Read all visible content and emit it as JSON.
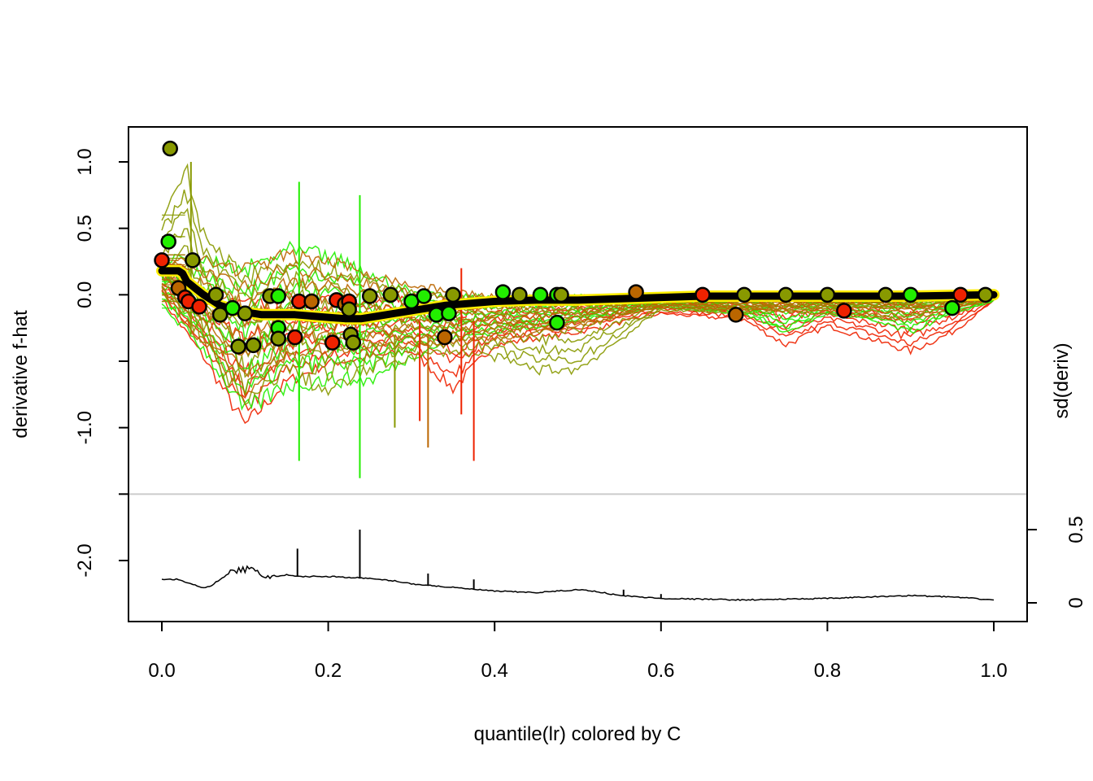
{
  "chart_data": {
    "type": "line",
    "xlabel": "quantile(lr) colored by C",
    "ylabel": "derivative f-hat",
    "right_label": "sd(deriv)",
    "x_ticks": [
      "0.0",
      "0.2",
      "0.4",
      "0.6",
      "0.8",
      "1.0"
    ],
    "x_tick_values": [
      0,
      0.2,
      0.4,
      0.6,
      0.8,
      1.0
    ],
    "y_ticks": [
      "1.0",
      "0.5",
      "0.0",
      "-1.0",
      "-2.0"
    ],
    "y_tick_values": [
      1.0,
      0.5,
      0.0,
      -1.0,
      -2.0
    ],
    "y_minor_ticks": [
      -0.5,
      -1.5
    ],
    "right_ticks": [
      "0.5",
      "0"
    ],
    "right_tick_values": [
      0.5,
      0.0
    ],
    "xlim": [
      -0.04,
      1.04
    ],
    "ylim": [
      -2.45,
      1.25
    ],
    "sd_panel_ylim": [
      -0.12,
      0.78
    ],
    "separator_y": -1.5,
    "colors": {
      "red": "#ee2200",
      "green": "#22ee00",
      "olive": "#889900",
      "brown": "#bb6600",
      "mean": "#000000",
      "mean_outline": "#ffee00",
      "separator": "#cccccc"
    },
    "mean_curve": {
      "x": [
        0,
        0.02,
        0.025,
        0.03,
        0.04,
        0.05,
        0.06,
        0.07,
        0.08,
        0.09,
        0.1,
        0.12,
        0.14,
        0.16,
        0.18,
        0.2,
        0.22,
        0.24,
        0.26,
        0.28,
        0.3,
        0.32,
        0.34,
        0.36,
        0.38,
        0.4,
        0.45,
        0.5,
        0.55,
        0.6,
        0.65,
        0.7,
        0.8,
        0.9,
        1.0
      ],
      "y": [
        0.18,
        0.18,
        0.16,
        0.1,
        0.05,
        0.0,
        -0.04,
        -0.08,
        -0.1,
        -0.12,
        -0.13,
        -0.15,
        -0.15,
        -0.15,
        -0.16,
        -0.17,
        -0.18,
        -0.18,
        -0.16,
        -0.14,
        -0.12,
        -0.1,
        -0.08,
        -0.07,
        -0.06,
        -0.05,
        -0.04,
        -0.04,
        -0.03,
        -0.02,
        -0.01,
        -0.01,
        -0.01,
        -0.01,
        0.0
      ]
    },
    "curve_bands": [
      {
        "color": "red",
        "x": [
          0,
          0.05,
          0.1,
          0.15,
          0.2,
          0.25,
          0.3,
          0.35,
          0.4,
          0.5,
          0.6,
          0.7,
          0.75,
          0.8,
          0.85,
          0.9,
          0.95,
          1.0
        ],
        "upper": [
          0.3,
          0.05,
          0.0,
          0.02,
          0.0,
          -0.02,
          0.0,
          -0.02,
          -0.01,
          0.0,
          0.0,
          0.0,
          -0.01,
          -0.02,
          -0.03,
          -0.02,
          -0.01,
          0.0
        ],
        "lower": [
          -0.05,
          -0.5,
          -1.05,
          -0.7,
          -0.55,
          -0.5,
          -0.45,
          -0.75,
          -0.4,
          -0.3,
          -0.15,
          -0.2,
          -0.4,
          -0.25,
          -0.35,
          -0.45,
          -0.3,
          -0.05
        ]
      },
      {
        "color": "green",
        "x": [
          0,
          0.05,
          0.1,
          0.15,
          0.2,
          0.25,
          0.3,
          0.35,
          0.4,
          0.5,
          0.6,
          0.7,
          0.75,
          0.8,
          0.85,
          0.9,
          0.95,
          1.0
        ],
        "upper": [
          0.3,
          0.3,
          0.25,
          0.4,
          0.35,
          0.2,
          0.05,
          0.02,
          0.0,
          0.0,
          0.0,
          0.0,
          0.0,
          0.0,
          0.0,
          0.0,
          0.0,
          0.0
        ],
        "lower": [
          -0.1,
          -0.45,
          -0.95,
          -0.75,
          -0.7,
          -0.7,
          -0.5,
          -0.35,
          -0.3,
          -0.2,
          -0.1,
          -0.15,
          -0.3,
          -0.15,
          -0.2,
          -0.3,
          -0.15,
          -0.05
        ]
      },
      {
        "color": "olive",
        "x": [
          0,
          0.03,
          0.05,
          0.1,
          0.15,
          0.2,
          0.25,
          0.3,
          0.35,
          0.4,
          0.45,
          0.5,
          0.6,
          0.7,
          0.8,
          0.9,
          1.0
        ],
        "upper": [
          0.6,
          1.0,
          0.5,
          0.2,
          0.3,
          0.25,
          0.15,
          0.05,
          0.02,
          0.0,
          0.0,
          0.0,
          0.0,
          0.0,
          0.0,
          0.0,
          0.0
        ],
        "lower": [
          -0.05,
          -0.2,
          -0.4,
          -0.9,
          -0.6,
          -0.8,
          -0.6,
          -0.5,
          -0.45,
          -0.5,
          -0.6,
          -0.6,
          -0.12,
          -0.15,
          -0.1,
          -0.1,
          -0.03
        ]
      },
      {
        "color": "brown",
        "x": [
          0,
          0.05,
          0.1,
          0.15,
          0.2,
          0.3,
          0.4,
          0.5,
          0.6,
          0.7,
          0.8,
          0.9,
          1.0
        ],
        "upper": [
          0.3,
          0.3,
          0.25,
          0.35,
          0.3,
          0.1,
          0.0,
          0.0,
          0.0,
          0.0,
          0.0,
          0.0,
          0.0
        ],
        "lower": [
          0.0,
          -0.4,
          -0.8,
          -0.5,
          -0.45,
          -0.4,
          -0.35,
          -0.25,
          -0.1,
          -0.12,
          -0.15,
          -0.2,
          -0.03
        ]
      }
    ],
    "spikes": [
      {
        "x": 0.165,
        "y1": -0.8,
        "y2": 0.85,
        "color": "green"
      },
      {
        "x": 0.165,
        "y1": -1.25,
        "y2": -0.4,
        "color": "green"
      },
      {
        "x": 0.238,
        "y1": -1.38,
        "y2": 0.75,
        "color": "green"
      },
      {
        "x": 0.32,
        "y1": -1.15,
        "y2": -0.3,
        "color": "brown"
      },
      {
        "x": 0.375,
        "y1": -1.25,
        "y2": -0.2,
        "color": "red"
      },
      {
        "x": 0.36,
        "y1": -0.9,
        "y2": 0.2,
        "color": "red"
      },
      {
        "x": 0.31,
        "y1": -0.95,
        "y2": -0.2,
        "color": "red"
      },
      {
        "x": 0.035,
        "y1": -0.3,
        "y2": 1.0,
        "color": "olive"
      },
      {
        "x": 0.28,
        "y1": -1.0,
        "y2": -0.3,
        "color": "olive"
      }
    ],
    "points": [
      {
        "x": 0.01,
        "y": 1.1,
        "color": "olive"
      },
      {
        "x": 0.008,
        "y": 0.4,
        "color": "green"
      },
      {
        "x": 0.0,
        "y": 0.26,
        "color": "red"
      },
      {
        "x": 0.037,
        "y": 0.26,
        "color": "olive"
      },
      {
        "x": 0.02,
        "y": 0.05,
        "color": "brown"
      },
      {
        "x": 0.028,
        "y": -0.02,
        "color": "red"
      },
      {
        "x": 0.032,
        "y": -0.05,
        "color": "red"
      },
      {
        "x": 0.045,
        "y": -0.09,
        "color": "red"
      },
      {
        "x": 0.065,
        "y": 0.0,
        "color": "olive"
      },
      {
        "x": 0.07,
        "y": -0.15,
        "color": "olive"
      },
      {
        "x": 0.085,
        "y": -0.1,
        "color": "green"
      },
      {
        "x": 0.092,
        "y": -0.39,
        "color": "olive"
      },
      {
        "x": 0.11,
        "y": -0.38,
        "color": "olive"
      },
      {
        "x": 0.1,
        "y": -0.14,
        "color": "olive"
      },
      {
        "x": 0.13,
        "y": -0.01,
        "color": "olive"
      },
      {
        "x": 0.14,
        "y": -0.01,
        "color": "green"
      },
      {
        "x": 0.14,
        "y": -0.25,
        "color": "green"
      },
      {
        "x": 0.14,
        "y": -0.33,
        "color": "olive"
      },
      {
        "x": 0.16,
        "y": -0.32,
        "color": "red"
      },
      {
        "x": 0.165,
        "y": -0.05,
        "color": "red"
      },
      {
        "x": 0.18,
        "y": -0.05,
        "color": "brown"
      },
      {
        "x": 0.205,
        "y": -0.36,
        "color": "red"
      },
      {
        "x": 0.21,
        "y": -0.04,
        "color": "red"
      },
      {
        "x": 0.22,
        "y": -0.07,
        "color": "brown"
      },
      {
        "x": 0.225,
        "y": -0.05,
        "color": "red"
      },
      {
        "x": 0.225,
        "y": -0.11,
        "color": "olive"
      },
      {
        "x": 0.227,
        "y": -0.3,
        "color": "olive"
      },
      {
        "x": 0.23,
        "y": -0.36,
        "color": "olive"
      },
      {
        "x": 0.25,
        "y": -0.01,
        "color": "olive"
      },
      {
        "x": 0.275,
        "y": 0.0,
        "color": "olive"
      },
      {
        "x": 0.3,
        "y": -0.05,
        "color": "green"
      },
      {
        "x": 0.315,
        "y": -0.01,
        "color": "green"
      },
      {
        "x": 0.33,
        "y": -0.15,
        "color": "green"
      },
      {
        "x": 0.34,
        "y": -0.32,
        "color": "brown"
      },
      {
        "x": 0.345,
        "y": -0.14,
        "color": "green"
      },
      {
        "x": 0.35,
        "y": 0.0,
        "color": "olive"
      },
      {
        "x": 0.41,
        "y": 0.02,
        "color": "green"
      },
      {
        "x": 0.43,
        "y": 0.0,
        "color": "olive"
      },
      {
        "x": 0.455,
        "y": 0.0,
        "color": "green"
      },
      {
        "x": 0.475,
        "y": 0.0,
        "color": "green"
      },
      {
        "x": 0.475,
        "y": -0.21,
        "color": "green"
      },
      {
        "x": 0.48,
        "y": 0.0,
        "color": "olive"
      },
      {
        "x": 0.57,
        "y": 0.02,
        "color": "brown"
      },
      {
        "x": 0.65,
        "y": 0.0,
        "color": "red"
      },
      {
        "x": 0.69,
        "y": -0.15,
        "color": "brown"
      },
      {
        "x": 0.7,
        "y": 0.0,
        "color": "olive"
      },
      {
        "x": 0.75,
        "y": 0.0,
        "color": "olive"
      },
      {
        "x": 0.8,
        "y": 0.0,
        "color": "olive"
      },
      {
        "x": 0.82,
        "y": -0.12,
        "color": "red"
      },
      {
        "x": 0.87,
        "y": 0.0,
        "color": "olive"
      },
      {
        "x": 0.9,
        "y": 0.0,
        "color": "green"
      },
      {
        "x": 0.95,
        "y": -0.1,
        "color": "green"
      },
      {
        "x": 0.96,
        "y": 0.0,
        "color": "red"
      },
      {
        "x": 0.99,
        "y": 0.0,
        "color": "olive"
      }
    ],
    "sd_curve": {
      "x": [
        0,
        0.02,
        0.03,
        0.04,
        0.05,
        0.06,
        0.07,
        0.08,
        0.09,
        0.1,
        0.11,
        0.12,
        0.13,
        0.14,
        0.15,
        0.16,
        0.2,
        0.24,
        0.28,
        0.3,
        0.32,
        0.34,
        0.36,
        0.38,
        0.4,
        0.45,
        0.5,
        0.52,
        0.55,
        0.6,
        0.7,
        0.8,
        0.9,
        0.95,
        1.0
      ],
      "y": [
        0.16,
        0.16,
        0.14,
        0.12,
        0.1,
        0.12,
        0.16,
        0.2,
        0.22,
        0.23,
        0.22,
        0.19,
        0.18,
        0.18,
        0.19,
        0.18,
        0.18,
        0.17,
        0.15,
        0.13,
        0.12,
        0.11,
        0.1,
        0.09,
        0.08,
        0.07,
        0.09,
        0.08,
        0.05,
        0.03,
        0.02,
        0.03,
        0.05,
        0.04,
        0.02
      ]
    },
    "sd_spikes": [
      {
        "x": 0.163,
        "y": 0.37
      },
      {
        "x": 0.238,
        "y": 0.5
      },
      {
        "x": 0.32,
        "y": 0.2
      },
      {
        "x": 0.375,
        "y": 0.16
      },
      {
        "x": 0.555,
        "y": 0.09
      },
      {
        "x": 0.6,
        "y": 0.06
      }
    ]
  }
}
